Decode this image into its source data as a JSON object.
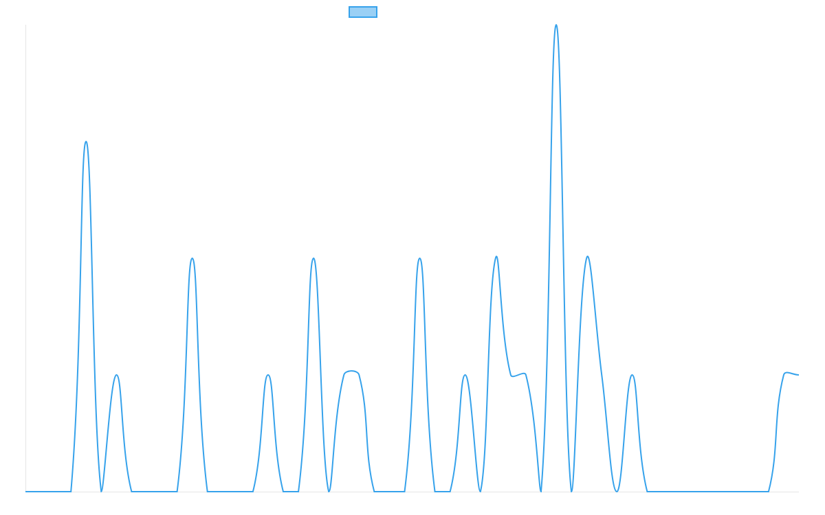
{
  "chart_data": {
    "type": "line",
    "categories": [
      null,
      null,
      null,
      null,
      null,
      null,
      null,
      null,
      null,
      null,
      null,
      null,
      null,
      null,
      null,
      null,
      null,
      null,
      null,
      null,
      null,
      null,
      null,
      null,
      null,
      null,
      null,
      null,
      null,
      null,
      null,
      null,
      null,
      null,
      null,
      null,
      null,
      null,
      null,
      null,
      null,
      null,
      null,
      null,
      null,
      null,
      null,
      null,
      null,
      null,
      null,
      null
    ],
    "series": [
      {
        "color": "#36a2eb",
        "fill": "#9ad0f5",
        "values": [
          0,
          0,
          0,
          0,
          3,
          0,
          1,
          0,
          0,
          0,
          0,
          2,
          0,
          0,
          0,
          0,
          1,
          0,
          0,
          2,
          0,
          1,
          1,
          0,
          0,
          0,
          2,
          0,
          0,
          1,
          0,
          2,
          1,
          1,
          0,
          4,
          0,
          2,
          1,
          0,
          1,
          0,
          0,
          0,
          0,
          0,
          0,
          0,
          0,
          0,
          1,
          1
        ]
      }
    ],
    "ylim": [
      0,
      4
    ],
    "legend": "top"
  }
}
